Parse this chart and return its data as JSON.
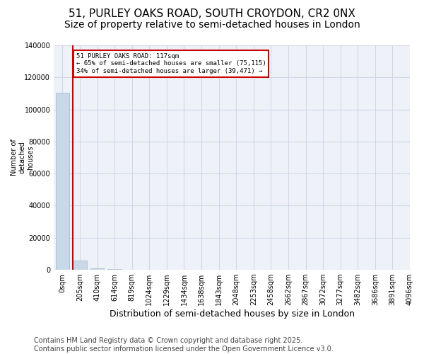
{
  "title": "51, PURLEY OAKS ROAD, SOUTH CROYDON, CR2 0NX",
  "subtitle": "Size of property relative to semi-detached houses in London",
  "xlabel": "Distribution of semi-detached houses by size in London",
  "ylabel": "Number of\ndetached\nhouses",
  "bar_color": "#c8d8e8",
  "bar_edge_color": "#a0b8cc",
  "grid_color": "#d0d8e8",
  "background_color": "#eef2f8",
  "red_line_color": "#cc0000",
  "annotation_box_color": "#cc0000",
  "bins": [
    "0sqm",
    "205sqm",
    "410sqm",
    "614sqm",
    "819sqm",
    "1024sqm",
    "1229sqm",
    "1434sqm",
    "1638sqm",
    "1843sqm",
    "2048sqm",
    "2253sqm",
    "2458sqm",
    "2662sqm",
    "2867sqm",
    "3072sqm",
    "3277sqm",
    "3482sqm",
    "3686sqm",
    "3891sqm"
  ],
  "values": [
    110500,
    5800,
    700,
    300,
    150,
    80,
    50,
    30,
    20,
    15,
    10,
    8,
    6,
    5,
    4,
    3,
    3,
    2,
    2,
    1
  ],
  "extra_tick_label": "4096sqm",
  "property_bin_index": 1,
  "property_size": 117,
  "pct_smaller": 65,
  "count_smaller": 75115,
  "pct_larger": 34,
  "count_larger": 39471,
  "annotation_text_line1": "51 PURLEY OAKS ROAD: 117sqm",
  "annotation_text_line2": "← 65% of semi-detached houses are smaller (75,115)",
  "annotation_text_line3": "34% of semi-detached houses are larger (39,471) →",
  "ylim": [
    0,
    140000
  ],
  "yticks": [
    0,
    20000,
    40000,
    60000,
    80000,
    100000,
    120000,
    140000
  ],
  "footer_line1": "Contains HM Land Registry data © Crown copyright and database right 2025.",
  "footer_line2": "Contains public sector information licensed under the Open Government Licence v3.0.",
  "title_fontsize": 11,
  "subtitle_fontsize": 10,
  "tick_fontsize": 7,
  "ylabel_fontsize": 7,
  "xlabel_fontsize": 9,
  "footer_fontsize": 7
}
